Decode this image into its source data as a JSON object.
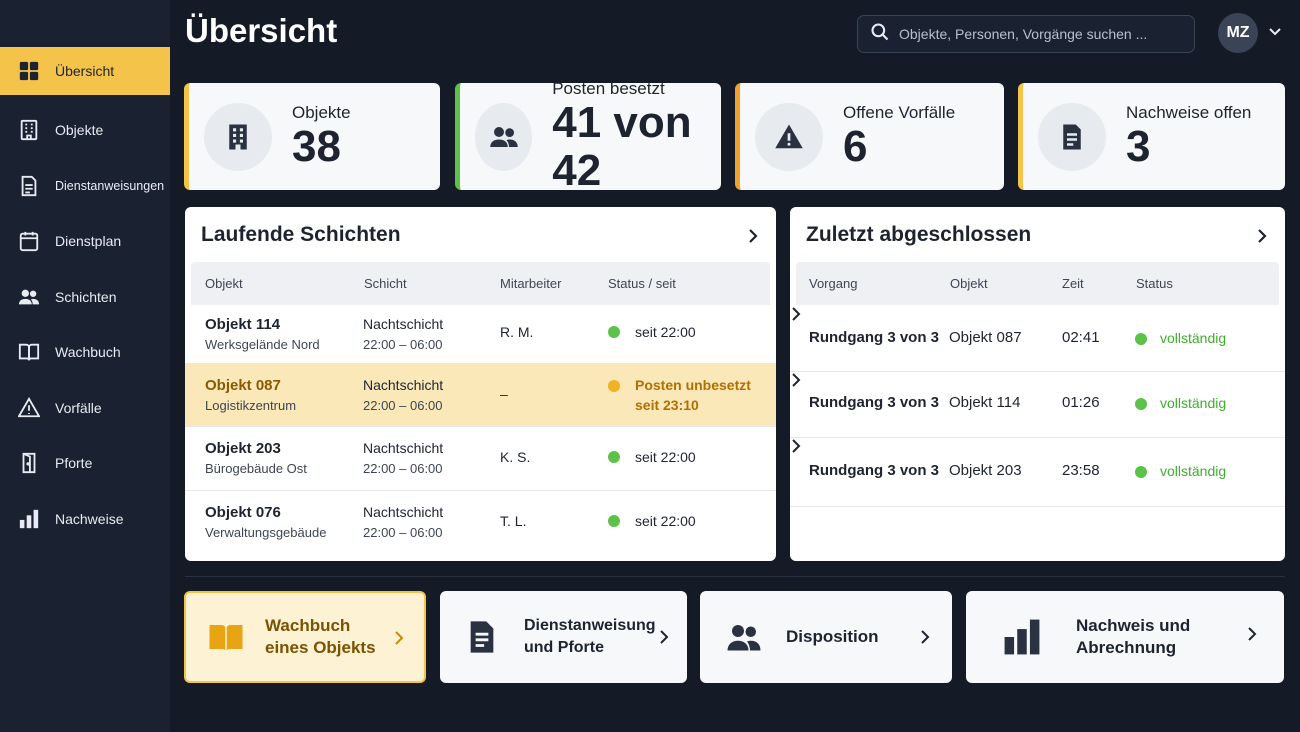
{
  "nav": [
    {
      "label": "Übersicht",
      "icon": "dashboard-icon"
    },
    {
      "label": "Objekte",
      "icon": "building-icon"
    },
    {
      "label": "Dienstanweisungen",
      "icon": "document-icon"
    },
    {
      "label": "Dienstplan",
      "icon": "calendar-icon"
    },
    {
      "label": "Schichten",
      "icon": "people-icon"
    },
    {
      "label": "Wachbuch",
      "icon": "book-icon"
    },
    {
      "label": "Vorfälle",
      "icon": "warning-icon"
    },
    {
      "label": "Pforte",
      "icon": "door-icon"
    },
    {
      "label": "Nachweise",
      "icon": "bar-chart-icon"
    }
  ],
  "header": {
    "title": "Übersicht",
    "search_placeholder": "Objekte, Personen, Vorgänge suchen ...",
    "avatar_initials": "MZ"
  },
  "kpis": [
    {
      "label": "Objekte",
      "value": "38",
      "accent": "#f3c34a",
      "icon": "building-icon"
    },
    {
      "label": "Posten besetzt",
      "value": "41 von 42",
      "accent": "#5cc24a",
      "icon": "people-icon"
    },
    {
      "label": "Offene Vorfälle",
      "value": "6",
      "accent": "#f0a12e",
      "icon": "warning-icon"
    },
    {
      "label": "Nachweise offen",
      "value": "3",
      "accent": "#f3c34a",
      "icon": "document-icon"
    }
  ],
  "shifts": {
    "title": "Laufende Schichten",
    "columns": [
      "Objekt",
      "Schicht",
      "Mitarbeiter",
      "Status / seit"
    ],
    "rows": [
      {
        "object": "Objekt 114",
        "location": "Werksgelände Nord",
        "shift": "Nachtschicht",
        "time": "22:00 – 06:00",
        "staff": "R. M.",
        "status": "seit 22:00",
        "status2": "",
        "status_color": "#5cc24a",
        "highlight": false
      },
      {
        "object": "Objekt 087",
        "location": "Logistikzentrum",
        "shift": "Nachtschicht",
        "time": "22:00 – 06:00",
        "staff": "–",
        "status": "Posten unbesetzt",
        "status2": "seit 23:10",
        "status_color": "#f0b323",
        "highlight": true
      },
      {
        "object": "Objekt 203",
        "location": "Bürogebäude Ost",
        "shift": "Nachtschicht",
        "time": "22:00 – 06:00",
        "staff": "K. S.",
        "status": "seit 22:00",
        "status2": "",
        "status_color": "#5cc24a",
        "highlight": false
      },
      {
        "object": "Objekt 076",
        "location": "Verwaltungsgebäude",
        "shift": "Nachtschicht",
        "time": "22:00 – 06:00",
        "staff": "T. L.",
        "status": "seit 22:00",
        "status2": "",
        "status_color": "#5cc24a",
        "highlight": false
      }
    ]
  },
  "recent": {
    "title": "Zuletzt abgeschlossen",
    "columns": [
      "Vorgang",
      "Objekt",
      "Zeit",
      "Status"
    ],
    "rows": [
      {
        "process": "Rundgang 3 von 3",
        "object": "Objekt 087",
        "time": "02:41",
        "status": "vollständig",
        "status_color": "#3fae2f"
      },
      {
        "process": "Rundgang 3 von 3",
        "object": "Objekt 114",
        "time": "01:26",
        "status": "vollständig",
        "status_color": "#3fae2f"
      },
      {
        "process": "Rundgang 3 von 3",
        "object": "Objekt 203",
        "time": "23:58",
        "status": "vollständig",
        "status_color": "#3fae2f"
      }
    ]
  },
  "quick_links": [
    {
      "line1": "Wachbuch",
      "line2": "eines Objekts",
      "icon": "book-icon",
      "active": true
    },
    {
      "line1": "Dienstanweisung",
      "line2": "und Pforte",
      "icon": "document-icon",
      "active": false
    },
    {
      "line1": "Disposition",
      "line2": "",
      "icon": "people-icon",
      "active": false
    },
    {
      "line1": "Nachweis und",
      "line2": "Abrechnung",
      "icon": "bar-chart-icon",
      "active": false
    }
  ]
}
